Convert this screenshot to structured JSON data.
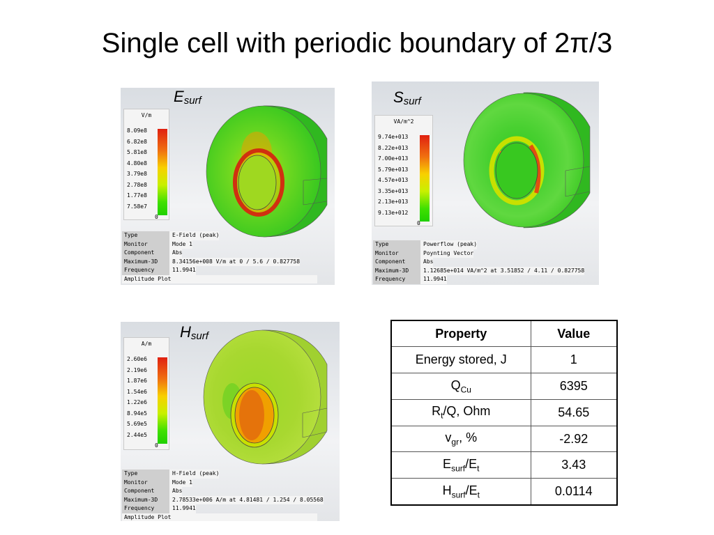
{
  "title": "Single cell with periodic boundary of 2π/3",
  "panels": {
    "e": {
      "label_main": "E",
      "label_sub": "surf",
      "unit": "V/m",
      "legend": [
        "8.09e8",
        "6.82e8",
        "5.81e8",
        "4.80e8",
        "3.79e8",
        "2.78e8",
        "1.77e8",
        "7.58e7",
        "0"
      ],
      "info": [
        {
          "key": "Type",
          "value": "E-Field (peak)"
        },
        {
          "key": "Monitor",
          "value": "Mode 1"
        },
        {
          "key": "Component",
          "value": "Abs"
        },
        {
          "key": "Maximum-3D",
          "value": "8.34156e+008 V/m at 0 / 5.6 / 0.827758"
        },
        {
          "key": "Frequency",
          "value": "11.9941"
        }
      ],
      "footer": "Amplitude Plot"
    },
    "s": {
      "label_main": "S",
      "label_sub": "surf",
      "unit": "VA/m^2",
      "legend": [
        "9.74e+013",
        "8.22e+013",
        "7.00e+013",
        "5.79e+013",
        "4.57e+013",
        "3.35e+013",
        "2.13e+013",
        "9.13e+012",
        "0"
      ],
      "info": [
        {
          "key": "Type",
          "value": "Powerflow (peak)"
        },
        {
          "key": "Monitor",
          "value": "Poynting Vector"
        },
        {
          "key": "Component",
          "value": "Abs"
        },
        {
          "key": "Maximum-3D",
          "value": "1.12685e+014 VA/m^2 at 3.51852 / 4.11 / 0.827758"
        },
        {
          "key": "Frequency",
          "value": "11.9941"
        }
      ]
    },
    "h": {
      "label_main": "H",
      "label_sub": "surf",
      "unit": "A/m",
      "legend": [
        "2.60e6",
        "2.19e6",
        "1.87e6",
        "1.54e6",
        "1.22e6",
        "8.94e5",
        "5.69e5",
        "2.44e5",
        "0"
      ],
      "info": [
        {
          "key": "Type",
          "value": "H-Field (peak)"
        },
        {
          "key": "Monitor",
          "value": "Mode 1"
        },
        {
          "key": "Component",
          "value": "Abs"
        },
        {
          "key": "Maximum-3D",
          "value": "2.78533e+006 A/m at 4.81481 / 1.254 / 8.05568"
        },
        {
          "key": "Frequency",
          "value": "11.9941"
        }
      ],
      "footer": "Amplitude Plot"
    }
  },
  "table": {
    "headers": [
      "Property",
      "Value"
    ],
    "rows": [
      {
        "main": "Energy stored, J",
        "sub": "",
        "rest": "",
        "sub2": "",
        "rest2": "",
        "value": "1"
      },
      {
        "main": "Q",
        "sub": "Cu",
        "rest": "",
        "sub2": "",
        "rest2": "",
        "value": "6395"
      },
      {
        "main": "R",
        "sub": "t",
        "rest": "/Q, Ohm",
        "sub2": "",
        "rest2": "",
        "value": "54.65"
      },
      {
        "main": "v",
        "sub": "gr",
        "rest": ", %",
        "sub2": "",
        "rest2": "",
        "value": "-2.92"
      },
      {
        "main": "E",
        "sub": "surf",
        "rest": "/E",
        "sub2": "t",
        "rest2": "",
        "value": "3.43"
      },
      {
        "main": "H",
        "sub": "surf",
        "rest": "/E",
        "sub2": "t",
        "rest2": "",
        "value": "0.0114"
      }
    ]
  }
}
